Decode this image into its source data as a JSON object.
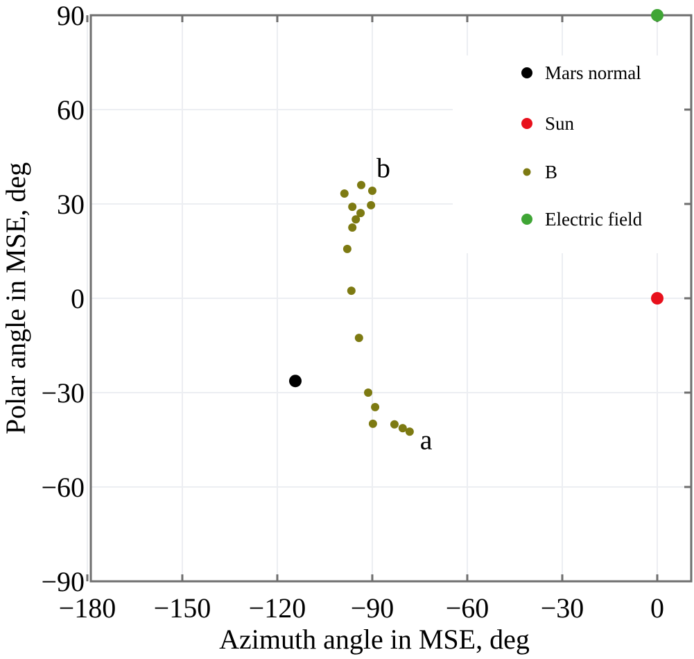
{
  "chart_data": {
    "type": "scatter",
    "title": "",
    "xlabel": "Azimuth angle in MSE, deg",
    "ylabel": "Polar angle in MSE, deg",
    "xlim": [
      -180,
      10.7
    ],
    "ylim": [
      -90,
      90
    ],
    "xticks": [
      -180,
      -150,
      -120,
      -90,
      -60,
      -30,
      0
    ],
    "yticks": [
      -90,
      -60,
      -30,
      0,
      30,
      60,
      90
    ],
    "xtick_labels": [
      "−180",
      "−150",
      "−120",
      "−90",
      "−60",
      "−30",
      "0"
    ],
    "ytick_labels": [
      "−90",
      "−60",
      "−30",
      "0",
      "30",
      "60",
      "90"
    ],
    "grid": true,
    "legend_position": "top-right",
    "series": [
      {
        "name": "Mars normal",
        "color": "#000000",
        "size": "large",
        "points": [
          [
            -114.3,
            -26.3
          ]
        ]
      },
      {
        "name": "Sun",
        "color": "#e8101c",
        "size": "large",
        "points": [
          [
            0,
            0
          ]
        ]
      },
      {
        "name": "B",
        "color": "#7d7a12",
        "size": "small",
        "points": [
          [
            -98.8,
            33.3
          ],
          [
            -93.5,
            36.0
          ],
          [
            -90.0,
            34.2
          ],
          [
            -96.3,
            29.1
          ],
          [
            -90.4,
            29.6
          ],
          [
            -93.7,
            27.1
          ],
          [
            -95.2,
            25.1
          ],
          [
            -96.3,
            22.5
          ],
          [
            -97.9,
            15.7
          ],
          [
            -96.6,
            2.4
          ],
          [
            -94.2,
            -12.6
          ],
          [
            -91.3,
            -30.0
          ],
          [
            -89.1,
            -34.6
          ],
          [
            -89.8,
            -39.9
          ],
          [
            -83.0,
            -40.1
          ],
          [
            -80.4,
            -41.3
          ],
          [
            -78.2,
            -42.4
          ]
        ]
      },
      {
        "name": "Electric field",
        "color": "#3fa535",
        "size": "large",
        "points": [
          [
            0,
            90
          ]
        ]
      }
    ],
    "annotations": [
      {
        "text": "b",
        "x": -86.5,
        "y": 38.5
      },
      {
        "text": "a",
        "x": -73,
        "y": -48
      }
    ]
  }
}
